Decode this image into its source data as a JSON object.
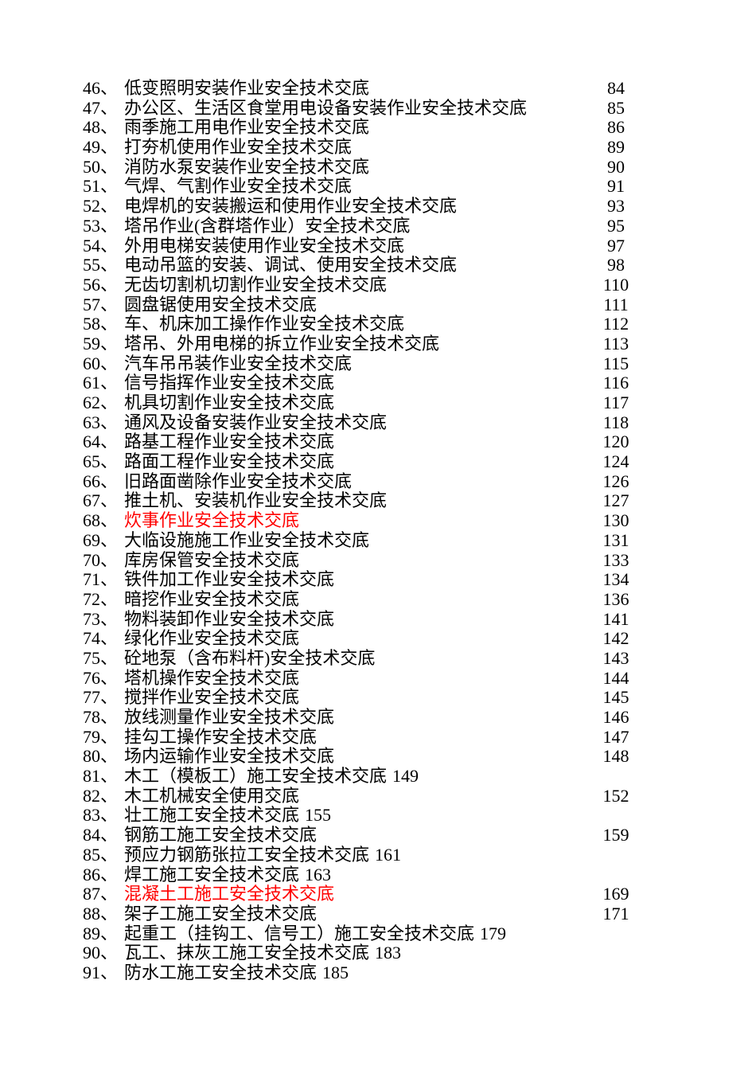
{
  "page": {
    "background": "#ffffff",
    "text_color": "#000000",
    "highlight_color": "#ff0000"
  },
  "toc": {
    "entries": [
      {
        "num": "46、",
        "title": "低变照明安装作业安全技术交底",
        "page": "84",
        "inline": false,
        "red": false
      },
      {
        "num": "47、",
        "title": "办公区、生活区食堂用电设备安装作业安全技术交底",
        "page": "85",
        "inline": false,
        "red": false
      },
      {
        "num": "48、",
        "title": "雨季施工用电作业安全技术交底",
        "page": "86",
        "inline": false,
        "red": false
      },
      {
        "num": "49、",
        "title": "打夯机使用作业安全技术交底",
        "page": "89",
        "inline": false,
        "red": false
      },
      {
        "num": "50、",
        "title": "消防水泵安装作业安全技术交底",
        "page": "90",
        "inline": false,
        "red": false
      },
      {
        "num": "51、",
        "title": "气焊、气割作业安全技术交底",
        "page": "91",
        "inline": false,
        "red": false
      },
      {
        "num": "52、",
        "title": "电焊机的安装搬运和使用作业安全技术交底",
        "page": "93",
        "inline": false,
        "red": false
      },
      {
        "num": "53、",
        "title": "塔吊作业(含群塔作业）安全技术交底",
        "page": "95",
        "inline": false,
        "red": false
      },
      {
        "num": "54、",
        "title": "外用电梯安装使用作业安全技术交底",
        "page": "97",
        "inline": false,
        "red": false
      },
      {
        "num": "55、",
        "title": "电动吊篮的安装、调试、使用安全技术交底",
        "page": "98",
        "inline": false,
        "red": false
      },
      {
        "num": "56、",
        "title": "无齿切割机切割作业安全技术交底",
        "page": "110",
        "inline": false,
        "red": false
      },
      {
        "num": "57、",
        "title": "圆盘锯使用安全技术交底",
        "page": "111",
        "inline": false,
        "red": false
      },
      {
        "num": "58、",
        "title": "车、机床加工操作作业安全技术交底",
        "page": "112",
        "inline": false,
        "red": false
      },
      {
        "num": "59、",
        "title": "塔吊、外用电梯的拆立作业安全技术交底",
        "page": "113",
        "inline": false,
        "red": false
      },
      {
        "num": "60、",
        "title": "汽车吊吊装作业安全技术交底",
        "page": "115",
        "inline": false,
        "red": false
      },
      {
        "num": "61、",
        "title": "信号指挥作业安全技术交底",
        "page": "116",
        "inline": false,
        "red": false
      },
      {
        "num": "62、",
        "title": "机具切割作业安全技术交底",
        "page": "117",
        "inline": false,
        "red": false
      },
      {
        "num": "63、",
        "title": "通风及设备安装作业安全技术交底",
        "page": "118",
        "inline": false,
        "red": false
      },
      {
        "num": "64、",
        "title": "路基工程作业安全技术交底",
        "page": "120",
        "inline": false,
        "red": false
      },
      {
        "num": "65、",
        "title": "路面工程作业安全技术交底",
        "page": "124",
        "inline": false,
        "red": false
      },
      {
        "num": "66、",
        "title": "旧路面凿除作业安全技术交底",
        "page": "126",
        "inline": false,
        "red": false
      },
      {
        "num": "67、",
        "title": "推土机、安装机作业安全技术交底",
        "page": "127",
        "inline": false,
        "red": false
      },
      {
        "num": "68、",
        "title": "炊事作业安全技术交底",
        "page": "130",
        "inline": false,
        "red": true
      },
      {
        "num": "69、",
        "title": "大临设施施工作业安全技术交底",
        "page": "131",
        "inline": false,
        "red": false
      },
      {
        "num": "70、",
        "title": "库房保管安全技术交底",
        "page": "133",
        "inline": false,
        "red": false
      },
      {
        "num": "71、",
        "title": "铁件加工作业安全技术交底",
        "page": "134",
        "inline": false,
        "red": false
      },
      {
        "num": "72、",
        "title": "暗挖作业安全技术交底",
        "page": "136",
        "inline": false,
        "red": false
      },
      {
        "num": "73、",
        "title": "物料装卸作业安全技术交底",
        "page": "141",
        "inline": false,
        "red": false
      },
      {
        "num": "74、",
        "title": "绿化作业安全技术交底",
        "page": "142",
        "inline": false,
        "red": false
      },
      {
        "num": "75、",
        "title": "砼地泵（含布料杆)安全技术交底",
        "page": "143",
        "inline": false,
        "red": false
      },
      {
        "num": "76、",
        "title": "塔机操作安全技术交底",
        "page": "144",
        "inline": false,
        "red": false
      },
      {
        "num": "77、",
        "title": "搅拌作业安全技术交底",
        "page": "145",
        "inline": false,
        "red": false
      },
      {
        "num": "78、",
        "title": "放线测量作业安全技术交底",
        "page": "146",
        "inline": false,
        "red": false
      },
      {
        "num": "79、",
        "title": "挂勾工操作安全技术交底",
        "page": "147",
        "inline": false,
        "red": false
      },
      {
        "num": "80、",
        "title": "场内运输作业安全技术交底",
        "page": "148",
        "inline": false,
        "red": false
      },
      {
        "num": "81、",
        "title": "木工（模板工）施工安全技术交底",
        "page": "149",
        "inline": true,
        "red": false
      },
      {
        "num": "82、",
        "title": "木工机械安全使用交底",
        "page": "152",
        "inline": false,
        "red": false
      },
      {
        "num": "83、",
        "title": "壮工施工安全技术交底",
        "page": "155",
        "inline": true,
        "red": false
      },
      {
        "num": "84、",
        "title": "钢筋工施工安全技术交底",
        "page": "159",
        "inline": false,
        "red": false
      },
      {
        "num": "85、",
        "title": "预应力钢筋张拉工安全技术交底",
        "page": "161",
        "inline": true,
        "red": false
      },
      {
        "num": "86、",
        "title": "焊工施工安全技术交底",
        "page": "163",
        "inline": true,
        "red": false
      },
      {
        "num": "87、",
        "title": "混凝土工施工安全技术交底",
        "page": "169",
        "inline": false,
        "red": true
      },
      {
        "num": "88、",
        "title": "架子工施工安全技术交底",
        "page": "171",
        "inline": false,
        "red": false
      },
      {
        "num": "89、",
        "title": "起重工（挂钩工、信号工）施工安全技术交底",
        "page": "179",
        "inline": true,
        "red": false
      },
      {
        "num": "90、",
        "title": "瓦工、抹灰工施工安全技术交底",
        "page": "183",
        "inline": true,
        "red": false
      },
      {
        "num": "91、",
        "title": "防水工施工安全技术交底",
        "page": "185",
        "inline": true,
        "red": false
      }
    ]
  }
}
